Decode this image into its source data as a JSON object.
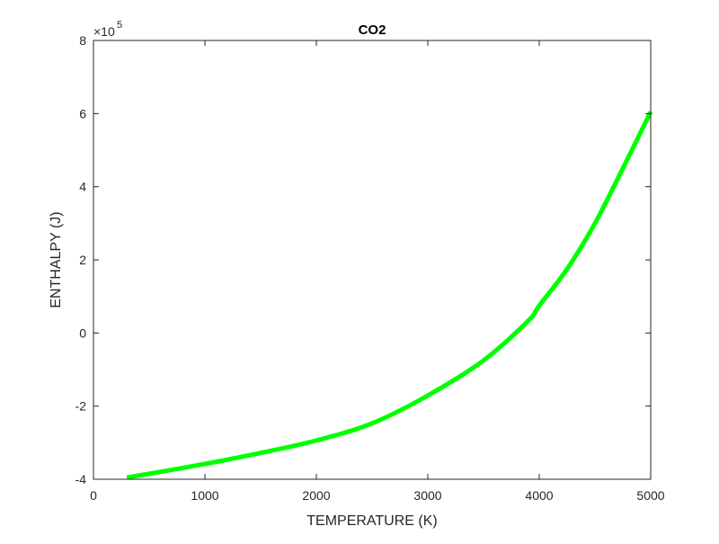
{
  "chart_data": {
    "type": "line",
    "title": "CO2",
    "xlabel": "TEMPERATURE (K)",
    "ylabel": "ENTHALPY (J)",
    "xlim": [
      0,
      5000
    ],
    "ylim": [
      -400000,
      800000
    ],
    "y_exponent_label": "×10",
    "y_exponent_power": "5",
    "x_ticks": [
      0,
      1000,
      2000,
      3000,
      4000,
      5000
    ],
    "x_tick_labels": [
      "0",
      "1000",
      "2000",
      "3000",
      "4000",
      "5000"
    ],
    "y_ticks": [
      -4,
      -2,
      0,
      2,
      4,
      6,
      8
    ],
    "y_tick_labels": [
      "-4",
      "-2",
      "0",
      "2",
      "4",
      "6",
      "8"
    ],
    "grid": false,
    "legend": null,
    "series": [
      {
        "name": "CO2",
        "color": "#00ff00",
        "line_width": 5,
        "x": [
          300,
          500,
          1000,
          1500,
          2000,
          2500,
          3000,
          3500,
          3900,
          4000,
          4250,
          4500,
          4750,
          5000
        ],
        "y": [
          -395000,
          -385000,
          -358000,
          -328000,
          -294000,
          -247000,
          -171000,
          -75000,
          33000,
          75000,
          175000,
          300000,
          450000,
          605000
        ]
      }
    ]
  },
  "colors": {
    "axis": "#262626",
    "line": "#00ff00",
    "background": "#ffffff"
  }
}
